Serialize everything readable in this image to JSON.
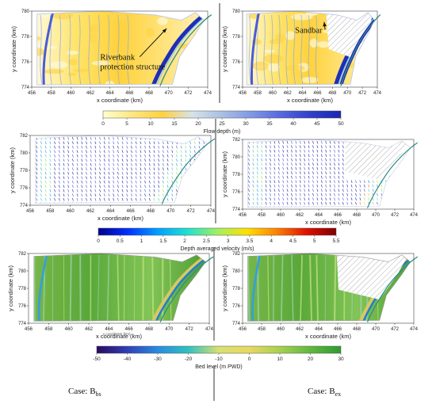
{
  "figure": {
    "panels": [
      {
        "id": "depth-bbs",
        "field": "depth",
        "case": "bbs",
        "variant": "A",
        "xlabel": "x coordinate (km)",
        "ylabel": "y coordinate (km)",
        "x_ticks": [
          "456",
          "458",
          "460",
          "462",
          "464",
          "466",
          "468",
          "470",
          "472",
          "474"
        ],
        "y_ticks": [
          "774",
          "776",
          "778",
          "780"
        ],
        "xlim": [
          456,
          474
        ],
        "ylim": [
          774,
          781
        ],
        "annotations": [
          {
            "label": "Riverbank\nprotection structure",
            "x_km": 463.0,
            "y_km": 776.5,
            "arrow_to": [
              469.8,
              779.4
            ]
          }
        ]
      },
      {
        "id": "depth-bex",
        "field": "depth",
        "case": "bex",
        "variant": "B",
        "xlabel": "x coordinate (km)",
        "ylabel": "y coordinate (km)",
        "x_ticks": [
          "456",
          "458",
          "460",
          "462",
          "464",
          "466",
          "468",
          "470",
          "472",
          "474"
        ],
        "y_ticks": [
          "774",
          "776",
          "778",
          "780"
        ],
        "xlim": [
          456,
          474
        ],
        "ylim": [
          774,
          781
        ],
        "annotations": [
          {
            "label": "Sandbar",
            "x_km": 463.0,
            "y_km": 779.0,
            "arrow_to": [
              466.9,
              780.0
            ]
          }
        ]
      },
      {
        "id": "vel-bbs",
        "field": "velocity",
        "case": "bbs",
        "variant": "A",
        "xlabel": "x coordinate (km)",
        "ylabel": "y coordinate (km)",
        "x_ticks": [
          "456",
          "458",
          "460",
          "462",
          "464",
          "466",
          "468",
          "470",
          "472",
          "474"
        ],
        "y_ticks": [
          "774",
          "776",
          "778",
          "780",
          "782"
        ],
        "xlim": [
          456,
          474
        ],
        "ylim": [
          774,
          782
        ],
        "annotations": []
      },
      {
        "id": "vel-bex",
        "field": "velocity",
        "case": "bex",
        "variant": "B",
        "xlabel": "x coordinate (km)",
        "ylabel": "y coordinate (km)",
        "x_ticks": [
          "456",
          "458",
          "460",
          "462",
          "464",
          "466",
          "468",
          "470",
          "472",
          "474"
        ],
        "y_ticks": [
          "774",
          "776",
          "778",
          "780",
          "782"
        ],
        "xlim": [
          456,
          474
        ],
        "ylim": [
          774,
          782
        ],
        "annotations": []
      },
      {
        "id": "bed-bbs",
        "field": "bed",
        "case": "bbs",
        "variant": "A",
        "xlabel": "x coordinate (km)",
        "ylabel": "y coordinate (km)",
        "inner_xlabel": "x coordinate (km) →",
        "x_ticks": [
          "456",
          "458",
          "460",
          "462",
          "464",
          "466",
          "468",
          "470",
          "472",
          "474"
        ],
        "y_ticks": [
          "774",
          "776",
          "778",
          "780",
          "782"
        ],
        "xlim": [
          456,
          474
        ],
        "ylim": [
          774,
          782
        ],
        "annotations": []
      },
      {
        "id": "bed-bex",
        "field": "bed",
        "case": "bex",
        "variant": "B",
        "xlabel": "x coordinate (km)",
        "ylabel": "y coordinate (km)",
        "x_ticks": [
          "456",
          "458",
          "460",
          "462",
          "464",
          "466",
          "468",
          "470",
          "472",
          "474"
        ],
        "y_ticks": [
          "774",
          "776",
          "778",
          "780",
          "782"
        ],
        "xlim": [
          456,
          474
        ],
        "ylim": [
          774,
          782
        ],
        "annotations": []
      }
    ],
    "colorbars": [
      {
        "id": "flow-depth-cbar",
        "label": "Flow depth (m)",
        "ticks": [
          "0",
          "5",
          "10",
          "15",
          "20",
          "25",
          "30",
          "35",
          "40",
          "45",
          "50"
        ],
        "range": [
          0,
          50
        ],
        "colors": [
          "#ffffcc",
          "#ffe680",
          "#ffd13f",
          "#d6e3e8",
          "#a9bfe3",
          "#7f97e6",
          "#5566e0",
          "#2f3ec9",
          "#1b26b0"
        ]
      },
      {
        "id": "velocity-cbar",
        "label": "Depth averaged velocity  (m/s)",
        "ticks": [
          "0",
          "0.5",
          "1",
          "1.5",
          "2",
          "2.5",
          "3",
          "3.5",
          "4",
          "4.5",
          "5",
          "5.5"
        ],
        "range": [
          0,
          5.5
        ],
        "colors": [
          "#00008f",
          "#0030ff",
          "#00a0ff",
          "#20e0d0",
          "#a0f060",
          "#ffe000",
          "#ff8000",
          "#e01000",
          "#800000"
        ]
      },
      {
        "id": "bed-level-cbar",
        "label": "Bed level  (m PWD)",
        "ticks": [
          "-50",
          "-40",
          "-30",
          "-20",
          "-10",
          "0",
          "10",
          "20",
          "30"
        ],
        "range": [
          -50,
          30
        ],
        "colors": [
          "#2a0a5e",
          "#2f3fb5",
          "#2a8be0",
          "#30c0c0",
          "#d8e070",
          "#e8d860",
          "#a8d050",
          "#60b840",
          "#2f9a30"
        ]
      }
    ],
    "captions": [
      {
        "prefix": "Case: B",
        "sub": "bs"
      },
      {
        "prefix": "Case: B",
        "sub": "ex"
      }
    ]
  },
  "chart_data": [
    {
      "type": "heatmap",
      "title": "",
      "xlabel": "x coordinate (km)",
      "ylabel": "y coordinate (km)",
      "xlim": [
        456,
        474
      ],
      "ylim": [
        774,
        781
      ],
      "colorbar": "Flow depth (m)",
      "crange": [
        0,
        50
      ],
      "annotations": [
        "Riverbank protection structure"
      ]
    },
    {
      "type": "heatmap",
      "title": "",
      "xlabel": "x coordinate (km)",
      "ylabel": "y coordinate (km)",
      "xlim": [
        456,
        474
      ],
      "ylim": [
        774,
        781
      ],
      "colorbar": "Flow depth (m)",
      "crange": [
        0,
        50
      ],
      "annotations": [
        "Sandbar"
      ]
    },
    {
      "type": "scatter",
      "title": "",
      "xlabel": "x coordinate (km)",
      "ylabel": "y coordinate (km)",
      "xlim": [
        456,
        474
      ],
      "ylim": [
        774,
        782
      ],
      "colorbar": "Depth averaged velocity  (m/s)",
      "crange": [
        0,
        5.5
      ]
    },
    {
      "type": "scatter",
      "title": "",
      "xlabel": "x coordinate (km)",
      "ylabel": "y coordinate (km)",
      "xlim": [
        456,
        474
      ],
      "ylim": [
        774,
        782
      ],
      "colorbar": "Depth averaged velocity  (m/s)",
      "crange": [
        0,
        5.5
      ]
    },
    {
      "type": "heatmap",
      "title": "",
      "xlabel": "x coordinate (km)",
      "ylabel": "y coordinate (km)",
      "xlim": [
        456,
        474
      ],
      "ylim": [
        774,
        782
      ],
      "colorbar": "Bed level  (m PWD)",
      "crange": [
        -50,
        30
      ]
    },
    {
      "type": "heatmap",
      "title": "",
      "xlabel": "x coordinate (km)",
      "ylabel": "y coordinate (km)",
      "xlim": [
        456,
        474
      ],
      "ylim": [
        774,
        782
      ],
      "colorbar": "Bed level  (m PWD)",
      "crange": [
        -50,
        30
      ]
    }
  ]
}
